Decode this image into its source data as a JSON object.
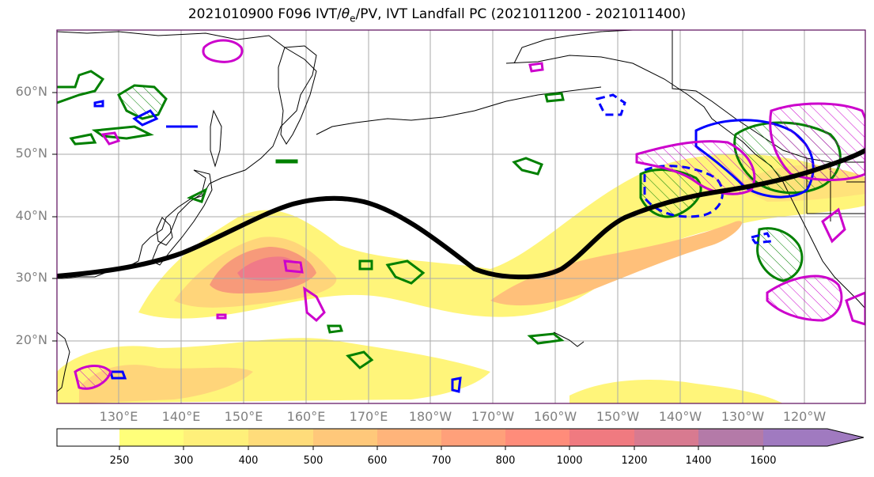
{
  "title": {
    "prefix": "2021010900 F096 IVT/",
    "theta": "θ",
    "sub": "e",
    "suffix": "/PV, IVT Landfall PC (2021011200 - 2021011400)"
  },
  "lat_labels": [
    "60°N",
    "50°N",
    "40°N",
    "30°N",
    "20°N"
  ],
  "lon_labels": [
    "130°E",
    "140°E",
    "150°E",
    "160°E",
    "170°E",
    "180°W",
    "170°W",
    "160°W",
    "150°W",
    "140°W",
    "130°W",
    "120°W"
  ],
  "colorbar": {
    "ticks": [
      "250",
      "300",
      "400",
      "500",
      "600",
      "700",
      "800",
      "1000",
      "1200",
      "1400",
      "1600"
    ],
    "colors": [
      "#ffffff",
      "#ffff7a",
      "#fff07a",
      "#ffdc7a",
      "#ffc87a",
      "#ffb47a",
      "#ffa07a",
      "#ff8c7a",
      "#f07a80",
      "#d87a90",
      "#b47aa8",
      "#a07ac0"
    ]
  },
  "colors": {
    "green_contour": "#008000",
    "blue_contour": "#0000ff",
    "magenta_contour": "#cc00cc",
    "jet_line": "#000000"
  }
}
